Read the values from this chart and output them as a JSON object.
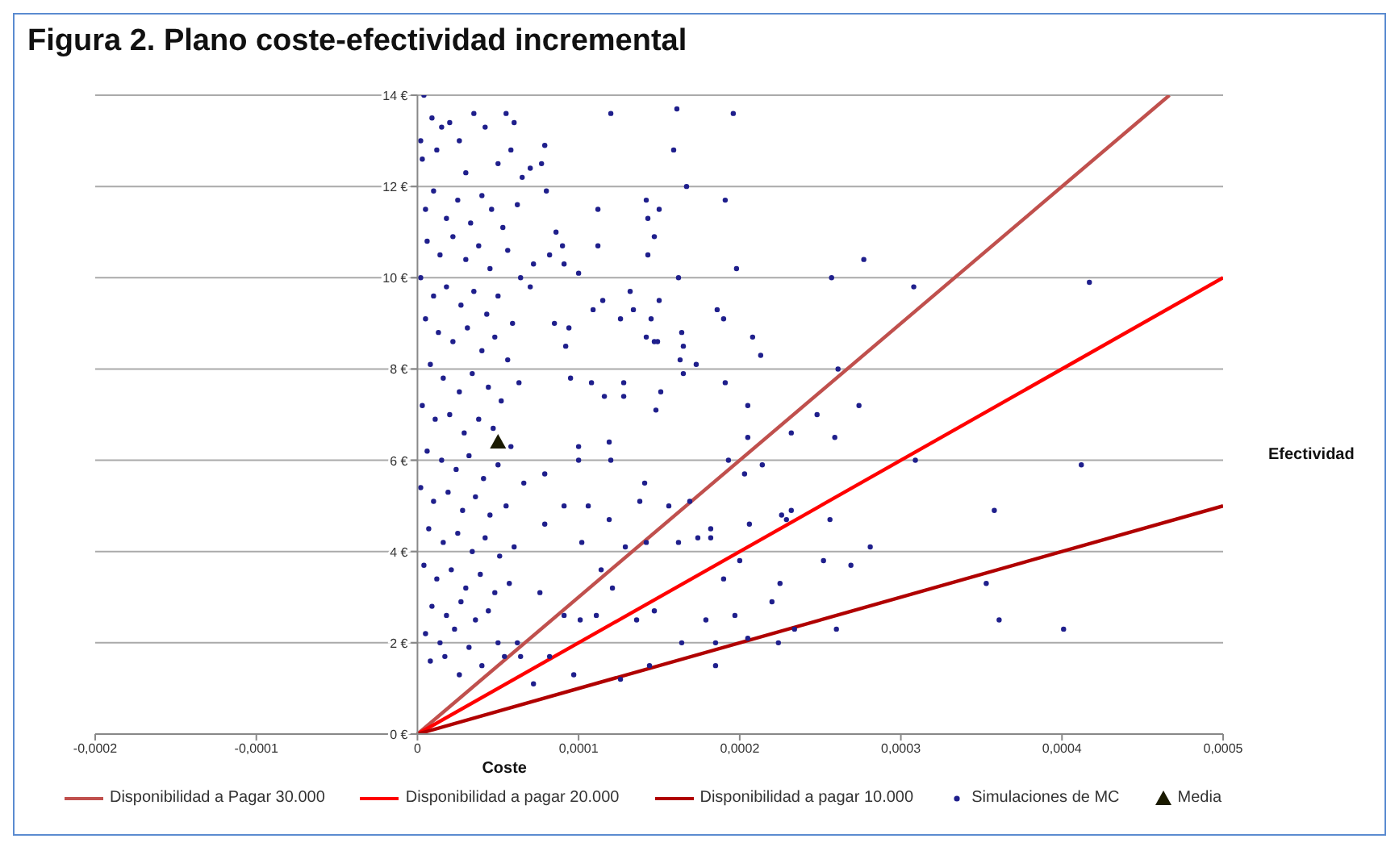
{
  "chart_data": {
    "type": "scatter",
    "title": "Figura 2. Plano coste-efectividad incremental",
    "xlabel": "Coste",
    "ylabel": "Efectividad",
    "xlim": [
      -0.0002,
      0.0005
    ],
    "xticks": [
      {
        "value": -0.0002,
        "label": "-0,0002"
      },
      {
        "value": -0.0001,
        "label": "-0,0001"
      },
      0,
      {
        "value": 0.0001,
        "label": "0,0001"
      },
      {
        "value": 0.0002,
        "label": "0,0002"
      },
      {
        "value": 0.0003,
        "label": "0,0003"
      },
      {
        "value": 0.0004,
        "label": "0,0004"
      },
      {
        "value": 0.0005,
        "label": "0,0005"
      }
    ],
    "ylim": [
      0,
      14
    ],
    "yticks": [
      {
        "value": 0,
        "label": "0 €"
      },
      {
        "value": 2,
        "label": "2 €"
      },
      {
        "value": 4,
        "label": "4 €"
      },
      {
        "value": 6,
        "label": "6 €"
      },
      {
        "value": 8,
        "label": "8 €"
      },
      {
        "value": 10,
        "label": "10 €"
      },
      {
        "value": 12,
        "label": "12 €"
      },
      {
        "value": 14,
        "label": "14 €"
      }
    ],
    "grid": "y",
    "legend": "bottom",
    "series": [
      {
        "name": "Disponibilidad a Pagar 30.000",
        "type": "line",
        "marker": "none",
        "color": "#c0504d",
        "x": [
          0,
          0.0004667
        ],
        "values": [
          0,
          14
        ]
      },
      {
        "name": "Disponibilidad a pagar 20.000",
        "type": "line",
        "marker": "none",
        "color": "#ff0000",
        "x": [
          0,
          0.0005
        ],
        "values": [
          0,
          10
        ]
      },
      {
        "name": "Disponibilidad a pagar 10.000",
        "type": "line",
        "marker": "none",
        "color": "#b00000",
        "x": [
          0,
          0.0005
        ],
        "values": [
          0,
          5
        ]
      },
      {
        "name": "Simulaciones de MC",
        "marker": "circle",
        "color": "#1f1f8c",
        "x": [
          0.000196,
          0.000191,
          0.000198,
          0.000257,
          0.000277,
          0.000308,
          0.000417,
          0.000186,
          0.00019,
          0.000208,
          0.000213,
          0.000261,
          0.000191,
          0.000205,
          0.000274,
          0.000248,
          0.000232,
          0.000205,
          0.000259,
          0.000193,
          0.000214,
          0.000309,
          0.000412,
          0.000203,
          0.000182,
          0.000206,
          0.000226,
          0.000232,
          0.000229,
          0.000256,
          0.000358,
          0.000281,
          0.0002,
          0.000252,
          0.000269,
          0.00019,
          0.000225,
          0.000353,
          0.00022,
          0.000197,
          0.000361,
          0.000185,
          0.000205,
          0.000224,
          0.000234,
          0.00026,
          0.000401,
          0.000185,
          0.00012,
          0.000161,
          0.000159,
          7.9e-05,
          7e-05,
          7.7e-05,
          0.000167,
          8e-05,
          0.000112,
          0.000142,
          0.00015,
          0.000143,
          0.000147,
          8.6e-05,
          9e-05,
          0.000112,
          0.000143,
          8.2e-05,
          7.2e-05,
          9.1e-05,
          0.0001,
          0.000162,
          7e-05,
          0.000132,
          0.000115,
          0.000109,
          0.00015,
          0.000134,
          0.000145,
          0.000126,
          9.4e-05,
          8.5e-05,
          0.000142,
          0.000147,
          0.000149,
          0.000164,
          0.000165,
          9.2e-05,
          0.000163,
          0.000173,
          0.000165,
          0.000128,
          0.000108,
          0.000116,
          0.000128,
          0.000151,
          9.5e-05,
          0.000148,
          0.000119,
          0.0001,
          0.0001,
          0.00012,
          7.9e-05,
          0.000141,
          9.1e-05,
          0.000106,
          0.000119,
          0.000138,
          0.000156,
          0.000169,
          7.9e-05,
          0.000102,
          0.000129,
          0.000142,
          0.000162,
          0.000174,
          0.000182,
          0.000114,
          0.000121,
          7.6e-05,
          9.1e-05,
          0.000101,
          0.000111,
          0.000136,
          0.000147,
          0.000179,
          6.2e-05,
          6.4e-05,
          8.2e-05,
          7.2e-05,
          9.7e-05,
          0.000126,
          0.000144,
          0.000164,
          2e-06,
          4e-06,
          9e-06,
          1.5e-05,
          2e-05,
          2.6e-05,
          1.2e-05,
          3.5e-05,
          4.2e-05,
          5.5e-05,
          6e-05,
          3e-05,
          5e-05,
          5.8e-05,
          6.5e-05,
          3e-06,
          5e-06,
          1e-05,
          1.8e-05,
          2.5e-05,
          3.3e-05,
          4e-05,
          4.6e-05,
          5.3e-05,
          6.2e-05,
          6e-06,
          1.4e-05,
          2.2e-05,
          3e-05,
          3.8e-05,
          4.5e-05,
          5.6e-05,
          6.4e-05,
          2e-06,
          1e-05,
          1.8e-05,
          2.7e-05,
          3.5e-05,
          4.3e-05,
          5e-05,
          5.9e-05,
          5e-06,
          1.3e-05,
          2.2e-05,
          3.1e-05,
          4e-05,
          4.8e-05,
          5.6e-05,
          8e-06,
          1.6e-05,
          2.6e-05,
          3.4e-05,
          4.4e-05,
          5.2e-05,
          6.3e-05,
          3e-06,
          1.1e-05,
          2e-05,
          2.9e-05,
          3.8e-05,
          4.7e-05,
          5.8e-05,
          6e-06,
          1.5e-05,
          2.4e-05,
          3.2e-05,
          4.1e-05,
          5e-05,
          6.6e-05,
          2e-06,
          1e-05,
          1.9e-05,
          2.8e-05,
          3.6e-05,
          4.5e-05,
          5.5e-05,
          7e-06,
          1.6e-05,
          2.5e-05,
          3.4e-05,
          4.2e-05,
          5.1e-05,
          6e-05,
          4e-06,
          1.2e-05,
          2.1e-05,
          3e-05,
          3.9e-05,
          4.8e-05,
          5.7e-05,
          9e-06,
          1.8e-05,
          2.7e-05,
          3.6e-05,
          4.4e-05,
          5e-06,
          1.4e-05,
          2.3e-05,
          3.2e-05,
          8e-06,
          1.7e-05,
          2.6e-05,
          4e-05,
          5e-05,
          5.4e-05
        ],
        "values": [
          13.6,
          11.7,
          10.2,
          10.0,
          10.4,
          9.8,
          9.9,
          9.3,
          9.1,
          8.7,
          8.3,
          8.0,
          7.7,
          7.2,
          7.2,
          7.0,
          6.6,
          6.5,
          6.5,
          6.0,
          5.9,
          6.0,
          5.9,
          5.7,
          4.5,
          4.6,
          4.8,
          4.9,
          4.7,
          4.7,
          4.9,
          4.1,
          3.8,
          3.8,
          3.7,
          3.4,
          3.3,
          3.3,
          2.9,
          2.6,
          2.5,
          2.0,
          2.1,
          2.0,
          2.3,
          2.3,
          2.3,
          1.5,
          13.6,
          13.7,
          12.8,
          12.9,
          12.4,
          12.5,
          12.0,
          11.9,
          11.5,
          11.7,
          11.5,
          11.3,
          10.9,
          11.0,
          10.7,
          10.7,
          10.5,
          10.5,
          10.3,
          10.3,
          10.1,
          10.0,
          9.8,
          9.7,
          9.5,
          9.3,
          9.5,
          9.3,
          9.1,
          9.1,
          8.9,
          9.0,
          8.7,
          8.6,
          8.6,
          8.8,
          8.5,
          8.5,
          8.2,
          8.1,
          7.9,
          7.7,
          7.7,
          7.4,
          7.4,
          7.5,
          7.8,
          7.1,
          6.4,
          6.3,
          6.0,
          6.0,
          5.7,
          5.5,
          5.0,
          5.0,
          4.7,
          5.1,
          5.0,
          5.1,
          4.6,
          4.2,
          4.1,
          4.2,
          4.2,
          4.3,
          4.3,
          3.6,
          3.2,
          3.1,
          2.6,
          2.5,
          2.6,
          2.5,
          2.7,
          2.5,
          2.0,
          1.7,
          1.7,
          1.1,
          1.3,
          1.2,
          1.5,
          2.0,
          13.0,
          14.0,
          13.5,
          13.3,
          13.4,
          13.0,
          12.8,
          13.6,
          13.3,
          13.6,
          13.4,
          12.3,
          12.5,
          12.8,
          12.2,
          12.6,
          11.5,
          11.9,
          11.3,
          11.7,
          11.2,
          11.8,
          11.5,
          11.1,
          11.6,
          10.8,
          10.5,
          10.9,
          10.4,
          10.7,
          10.2,
          10.6,
          10.0,
          10.0,
          9.6,
          9.8,
          9.4,
          9.7,
          9.2,
          9.6,
          9.0,
          9.1,
          8.8,
          8.6,
          8.9,
          8.4,
          8.7,
          8.2,
          8.1,
          7.8,
          7.5,
          7.9,
          7.6,
          7.3,
          7.7,
          7.2,
          6.9,
          7.0,
          6.6,
          6.9,
          6.7,
          6.3,
          6.2,
          6.0,
          5.8,
          6.1,
          5.6,
          5.9,
          5.5,
          5.4,
          5.1,
          5.3,
          4.9,
          5.2,
          4.8,
          5.0,
          4.5,
          4.2,
          4.4,
          4.0,
          4.3,
          3.9,
          4.1,
          3.7,
          3.4,
          3.6,
          3.2,
          3.5,
          3.1,
          3.3,
          2.8,
          2.6,
          2.9,
          2.5,
          2.7,
          2.2,
          2.0,
          2.3,
          1.9,
          1.6,
          1.7,
          1.3,
          1.5,
          2.0,
          1.7
        ]
      },
      {
        "name": "Media",
        "marker": "triangle",
        "color": "#1a1a00",
        "x": [
          5e-05
        ],
        "values": [
          6.4
        ]
      }
    ]
  }
}
